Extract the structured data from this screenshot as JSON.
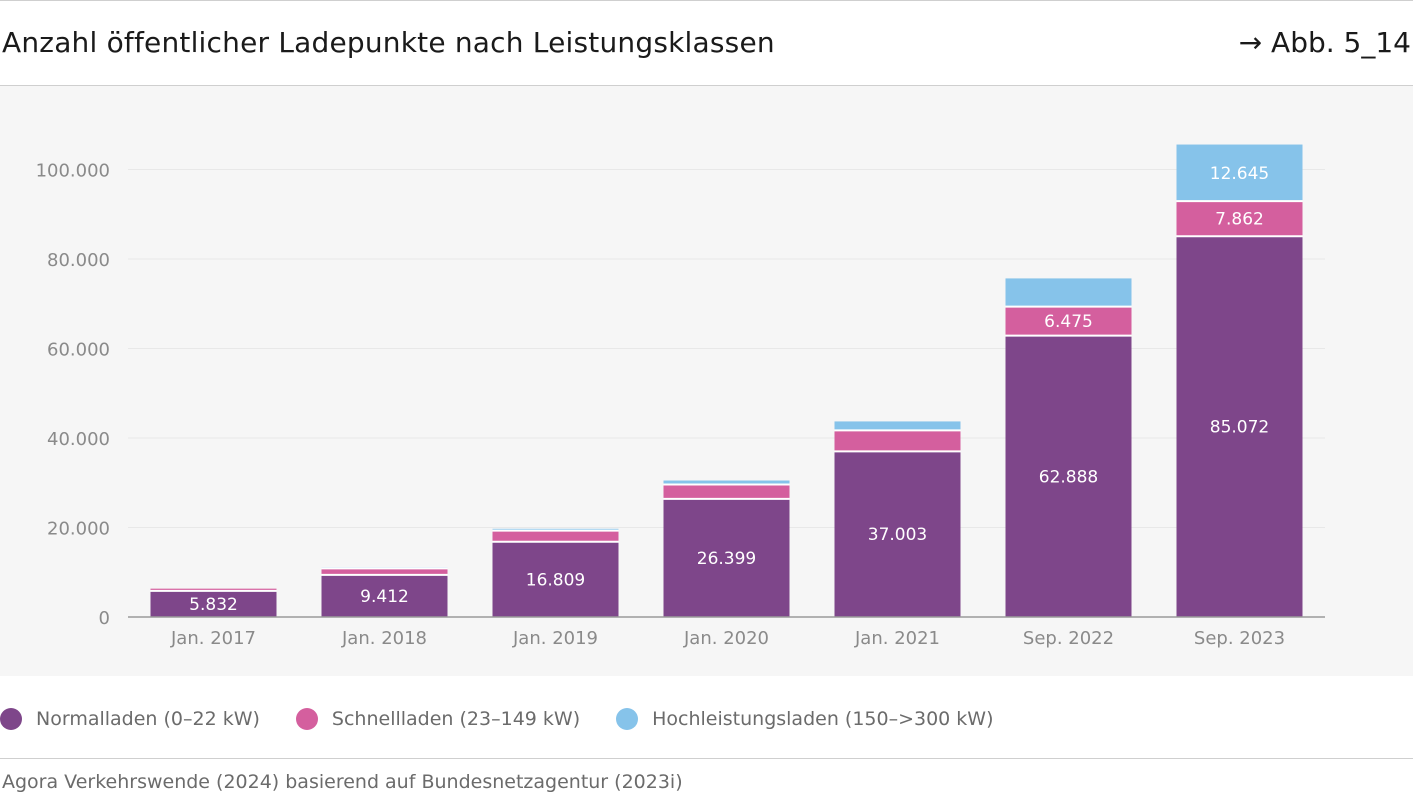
{
  "header": {
    "title": "Anzahl öffentlicher Ladepunkte nach Leistungsklassen",
    "figure_ref": "→ Abb. 5_14"
  },
  "chart_data": {
    "type": "bar",
    "stacked": true,
    "title": "Anzahl öffentlicher Ladepunkte nach Leistungsklassen",
    "categories": [
      "Jan. 2017",
      "Jan. 2018",
      "Jan. 2019",
      "Jan. 2020",
      "Jan. 2021",
      "Sep. 2022",
      "Sep. 2023"
    ],
    "series": [
      {
        "name": "Normalladen (0–22 kW)",
        "color": "#7e468a",
        "values": [
          5832,
          9412,
          16809,
          26399,
          37003,
          62888,
          85072
        ],
        "labels": [
          "5.832",
          "9.412",
          "16.809",
          "26.399",
          "37.003",
          "62.888",
          "85.072"
        ]
      },
      {
        "name": "Schnellladen (23–149 kW)",
        "color": "#d45f9e",
        "values": [
          500,
          1450,
          2500,
          3200,
          4700,
          6475,
          7862
        ],
        "labels": [
          "",
          "",
          "",
          "",
          "",
          "6.475",
          "7.862"
        ]
      },
      {
        "name": "Hochleistungsladen (150–>300 kW)",
        "color": "#86c3ea",
        "values": [
          0,
          250,
          400,
          900,
          2000,
          6300,
          12645
        ],
        "labels": [
          "",
          "",
          "",
          "",
          "",
          "",
          "12.645"
        ]
      }
    ],
    "y_ticks": [
      {
        "value": 0,
        "label": "0"
      },
      {
        "value": 20000,
        "label": "20.000"
      },
      {
        "value": 40000,
        "label": "40.000"
      },
      {
        "value": 60000,
        "label": "60.000"
      },
      {
        "value": 80000,
        "label": "80.000"
      },
      {
        "value": 100000,
        "label": "100.000"
      }
    ],
    "ylim": [
      0,
      110000
    ],
    "grid": true,
    "legend_position": "bottom-left"
  },
  "source": "Agora Verkehrswende (2024) basierend auf Bundesnetzagentur (2023i)"
}
